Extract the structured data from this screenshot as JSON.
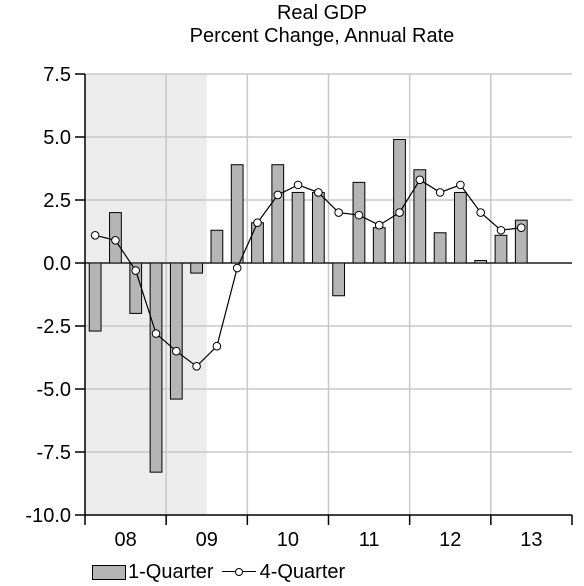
{
  "chart_data": {
    "type": "bar",
    "title": "Real GDP",
    "subtitle": "Percent Change, Annual Rate",
    "xlabel": "",
    "ylabel": "",
    "ylim": [
      -10.0,
      7.5
    ],
    "yticks": [
      "7.5",
      "5.0",
      "2.5",
      "0.0",
      "-2.5",
      "-5.0",
      "-7.5",
      "-10.0"
    ],
    "year_labels": [
      "08",
      "09",
      "10",
      "11",
      "12",
      "13"
    ],
    "categories": [
      "2008Q1",
      "2008Q2",
      "2008Q3",
      "2008Q4",
      "2009Q1",
      "2009Q2",
      "2009Q3",
      "2009Q4",
      "2010Q1",
      "2010Q2",
      "2010Q3",
      "2010Q4",
      "2011Q1",
      "2011Q2",
      "2011Q3",
      "2011Q4",
      "2012Q1",
      "2012Q2",
      "2012Q3",
      "2012Q4",
      "2013Q1",
      "2013Q2"
    ],
    "series": [
      {
        "name": "1-Quarter",
        "kind": "bar",
        "color": "#b5b5b5",
        "values": [
          -2.7,
          2.0,
          -2.0,
          -8.3,
          -5.4,
          -0.4,
          1.3,
          3.9,
          1.6,
          3.9,
          2.8,
          2.8,
          -1.3,
          3.2,
          1.4,
          4.9,
          3.7,
          1.2,
          2.8,
          0.1,
          1.1,
          1.7
        ]
      },
      {
        "name": "4-Quarter",
        "kind": "line",
        "color": "#000000",
        "values": [
          1.1,
          0.9,
          -0.3,
          -2.8,
          -3.5,
          -4.1,
          -3.3,
          -0.2,
          1.6,
          2.7,
          3.1,
          2.8,
          2.0,
          1.9,
          1.5,
          2.0,
          3.3,
          2.8,
          3.1,
          2.0,
          1.3,
          1.4
        ]
      }
    ],
    "recession_shading": {
      "from": "2008Q1",
      "to": "2009Q2",
      "color": "#ececec"
    },
    "grid": true,
    "legend": "bottom"
  }
}
